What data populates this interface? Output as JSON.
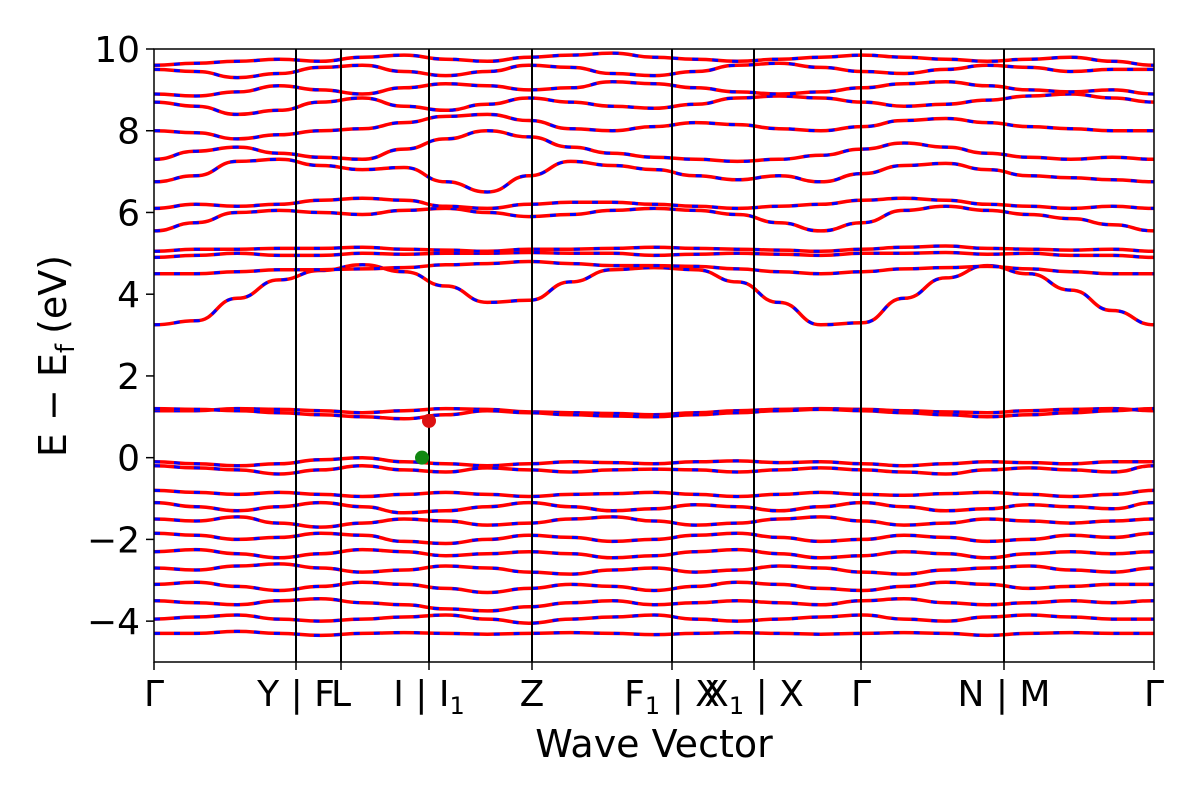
{
  "chart_data": {
    "type": "line",
    "title": "",
    "xlabel": "Wave Vector",
    "ylabel": "E − E",
    "ylabel_subscript": "f",
    "ylabel_unit": "(eV)",
    "ylim": [
      -5,
      10
    ],
    "yticks": [
      -4,
      -2,
      0,
      2,
      4,
      6,
      8,
      10
    ],
    "ytick_labels": [
      "−4",
      "−2",
      "0",
      "2",
      "4",
      "6",
      "8",
      "10"
    ],
    "xlim": [
      0,
      1
    ],
    "high_symmetry_points": [
      {
        "position": 0.0,
        "label": "Γ"
      },
      {
        "position": 0.142,
        "label": "Y | F"
      },
      {
        "position": 0.187,
        "label": "L"
      },
      {
        "position": 0.275,
        "label": "I | I",
        "sub": "1"
      },
      {
        "position": 0.378,
        "label": "Z"
      },
      {
        "position": 0.518,
        "label": "F",
        "sub": "1",
        "suffix": " | X"
      },
      {
        "position": 0.6,
        "label": "X",
        "sub": "1",
        "suffix": " | X"
      },
      {
        "position": 0.707,
        "label": "Γ"
      },
      {
        "position": 0.85,
        "label": "N | M"
      },
      {
        "position": 1.0,
        "label": "Γ"
      }
    ],
    "series": [
      {
        "color": "#ff0000",
        "style": "solid"
      },
      {
        "color": "#0000ff",
        "style": "dashed"
      }
    ],
    "markers": [
      {
        "label": "CBM",
        "x": 0.275,
        "y": 0.9,
        "color": "#dd1111"
      },
      {
        "label": "VBM",
        "x": 0.268,
        "y": 0.0,
        "color": "#118811"
      }
    ],
    "bands": [
      [
        3.25,
        3.35,
        3.9,
        4.35,
        4.58,
        4.72,
        4.55,
        4.2,
        3.8,
        3.85,
        4.3,
        4.6,
        4.65,
        4.6,
        4.3,
        3.8,
        3.25,
        3.3,
        3.9,
        4.4,
        4.7,
        4.5,
        4.1,
        3.6,
        3.25
      ],
      [
        4.5,
        4.5,
        4.55,
        4.6,
        4.6,
        4.62,
        4.65,
        4.72,
        4.75,
        4.8,
        4.75,
        4.7,
        4.7,
        4.68,
        4.62,
        4.55,
        4.5,
        4.55,
        4.62,
        4.65,
        4.68,
        4.62,
        4.55,
        4.5,
        4.5
      ],
      [
        4.9,
        4.95,
        5.0,
        4.95,
        4.95,
        5.0,
        4.98,
        5.0,
        5.0,
        5.02,
        5.0,
        5.0,
        4.95,
        4.98,
        5.0,
        4.98,
        4.95,
        5.0,
        5.0,
        5.02,
        4.98,
        5.0,
        4.95,
        4.95,
        4.9
      ],
      [
        5.05,
        5.1,
        5.1,
        5.12,
        5.12,
        5.15,
        5.1,
        5.08,
        5.05,
        5.1,
        5.1,
        5.12,
        5.15,
        5.12,
        5.1,
        5.08,
        5.05,
        5.1,
        5.15,
        5.18,
        5.12,
        5.1,
        5.08,
        5.1,
        5.05
      ],
      [
        5.55,
        5.75,
        6.0,
        6.05,
        6.0,
        5.95,
        6.05,
        6.1,
        6.0,
        5.9,
        5.95,
        6.05,
        6.1,
        6.05,
        5.95,
        5.75,
        5.55,
        5.75,
        6.05,
        6.15,
        6.05,
        5.95,
        5.85,
        5.7,
        5.55
      ],
      [
        6.1,
        6.2,
        6.15,
        6.2,
        6.3,
        6.35,
        6.3,
        6.15,
        6.1,
        6.2,
        6.25,
        6.25,
        6.2,
        6.15,
        6.1,
        6.15,
        6.2,
        6.3,
        6.35,
        6.3,
        6.2,
        6.15,
        6.1,
        6.15,
        6.1
      ],
      [
        6.75,
        6.9,
        7.25,
        7.3,
        7.15,
        7.05,
        7.1,
        6.75,
        6.5,
        6.9,
        7.25,
        7.15,
        7.05,
        6.9,
        6.8,
        6.9,
        6.75,
        6.95,
        7.15,
        7.2,
        7.05,
        6.9,
        6.85,
        6.8,
        6.75
      ],
      [
        7.3,
        7.5,
        7.6,
        7.45,
        7.35,
        7.3,
        7.55,
        7.8,
        8.0,
        7.85,
        7.6,
        7.45,
        7.35,
        7.3,
        7.25,
        7.3,
        7.4,
        7.55,
        7.7,
        7.6,
        7.45,
        7.35,
        7.3,
        7.35,
        7.3
      ],
      [
        8.0,
        7.95,
        7.8,
        7.9,
        8.0,
        8.05,
        8.2,
        8.35,
        8.4,
        8.25,
        8.05,
        8.0,
        8.1,
        8.2,
        8.15,
        8.05,
        8.0,
        8.1,
        8.25,
        8.3,
        8.2,
        8.1,
        8.05,
        8.0,
        8.0
      ],
      [
        8.7,
        8.6,
        8.4,
        8.5,
        8.7,
        8.8,
        8.6,
        8.5,
        8.65,
        8.8,
        8.7,
        8.6,
        8.55,
        8.65,
        8.8,
        8.85,
        8.8,
        8.7,
        8.6,
        8.65,
        8.75,
        8.85,
        8.9,
        8.8,
        8.7
      ],
      [
        8.9,
        8.85,
        8.95,
        9.1,
        9.0,
        8.9,
        9.05,
        9.15,
        9.1,
        9.0,
        9.05,
        9.2,
        9.15,
        9.05,
        8.95,
        8.9,
        8.95,
        9.05,
        9.15,
        9.2,
        9.1,
        9.0,
        8.95,
        9.0,
        8.9
      ],
      [
        9.5,
        9.45,
        9.3,
        9.4,
        9.55,
        9.6,
        9.45,
        9.35,
        9.45,
        9.6,
        9.55,
        9.4,
        9.35,
        9.45,
        9.6,
        9.65,
        9.55,
        9.45,
        9.4,
        9.5,
        9.6,
        9.55,
        9.45,
        9.5,
        9.5
      ],
      [
        9.6,
        9.65,
        9.7,
        9.75,
        9.7,
        9.8,
        9.85,
        9.75,
        9.7,
        9.8,
        9.85,
        9.9,
        9.8,
        9.75,
        9.7,
        9.75,
        9.8,
        9.85,
        9.8,
        9.75,
        9.7,
        9.75,
        9.8,
        9.7,
        9.6
      ],
      [
        1.15,
        1.15,
        1.2,
        1.18,
        1.15,
        1.1,
        1.15,
        1.2,
        1.18,
        1.12,
        1.1,
        1.08,
        1.05,
        1.1,
        1.15,
        1.18,
        1.2,
        1.18,
        1.15,
        1.12,
        1.1,
        1.15,
        1.18,
        1.2,
        1.15
      ],
      [
        1.2,
        1.18,
        1.15,
        1.1,
        1.05,
        1.0,
        0.95,
        1.05,
        1.15,
        1.1,
        1.05,
        1.02,
        1.0,
        1.05,
        1.1,
        1.15,
        1.18,
        1.15,
        1.1,
        1.05,
        1.0,
        1.05,
        1.1,
        1.15,
        1.2
      ],
      [
        -0.1,
        -0.15,
        -0.2,
        -0.15,
        -0.05,
        0.0,
        -0.1,
        -0.15,
        -0.2,
        -0.15,
        -0.1,
        -0.12,
        -0.15,
        -0.1,
        -0.08,
        -0.12,
        -0.1,
        -0.15,
        -0.2,
        -0.15,
        -0.1,
        -0.12,
        -0.15,
        -0.1,
        -0.1
      ],
      [
        -0.2,
        -0.25,
        -0.3,
        -0.4,
        -0.3,
        -0.2,
        -0.3,
        -0.35,
        -0.25,
        -0.3,
        -0.35,
        -0.3,
        -0.28,
        -0.3,
        -0.35,
        -0.3,
        -0.25,
        -0.3,
        -0.35,
        -0.4,
        -0.3,
        -0.25,
        -0.3,
        -0.35,
        -0.2
      ],
      [
        -0.8,
        -0.85,
        -0.9,
        -0.85,
        -0.9,
        -0.95,
        -0.9,
        -0.85,
        -0.9,
        -0.95,
        -0.9,
        -0.88,
        -0.85,
        -0.9,
        -0.95,
        -0.9,
        -0.85,
        -0.9,
        -0.92,
        -0.88,
        -0.85,
        -0.9,
        -0.95,
        -0.9,
        -0.8
      ],
      [
        -1.1,
        -1.2,
        -1.3,
        -1.2,
        -1.1,
        -1.2,
        -1.35,
        -1.3,
        -1.2,
        -1.1,
        -1.2,
        -1.3,
        -1.25,
        -1.15,
        -1.2,
        -1.3,
        -1.2,
        -1.1,
        -1.2,
        -1.3,
        -1.25,
        -1.15,
        -1.2,
        -1.25,
        -1.1
      ],
      [
        -1.5,
        -1.55,
        -1.45,
        -1.6,
        -1.7,
        -1.6,
        -1.5,
        -1.55,
        -1.65,
        -1.6,
        -1.5,
        -1.45,
        -1.55,
        -1.65,
        -1.6,
        -1.5,
        -1.45,
        -1.55,
        -1.65,
        -1.6,
        -1.5,
        -1.55,
        -1.6,
        -1.55,
        -1.5
      ],
      [
        -1.85,
        -1.9,
        -2.0,
        -1.95,
        -1.85,
        -1.9,
        -2.05,
        -2.1,
        -2.0,
        -1.9,
        -1.95,
        -2.05,
        -2.0,
        -1.9,
        -1.85,
        -1.95,
        -2.05,
        -2.0,
        -1.9,
        -1.95,
        -2.05,
        -2.0,
        -1.9,
        -1.95,
        -1.85
      ],
      [
        -2.3,
        -2.25,
        -2.35,
        -2.45,
        -2.35,
        -2.25,
        -2.3,
        -2.4,
        -2.35,
        -2.3,
        -2.35,
        -2.45,
        -2.4,
        -2.3,
        -2.25,
        -2.35,
        -2.45,
        -2.4,
        -2.3,
        -2.35,
        -2.45,
        -2.35,
        -2.3,
        -2.35,
        -2.3
      ],
      [
        -2.7,
        -2.75,
        -2.65,
        -2.6,
        -2.7,
        -2.8,
        -2.75,
        -2.65,
        -2.7,
        -2.8,
        -2.85,
        -2.75,
        -2.7,
        -2.8,
        -2.75,
        -2.65,
        -2.7,
        -2.8,
        -2.85,
        -2.75,
        -2.7,
        -2.65,
        -2.75,
        -2.8,
        -2.7
      ],
      [
        -3.1,
        -3.05,
        -3.15,
        -3.25,
        -3.15,
        -3.05,
        -3.1,
        -3.2,
        -3.3,
        -3.2,
        -3.1,
        -3.15,
        -3.25,
        -3.15,
        -3.05,
        -3.1,
        -3.2,
        -3.25,
        -3.15,
        -3.05,
        -3.1,
        -3.2,
        -3.15,
        -3.1,
        -3.1
      ],
      [
        -3.5,
        -3.55,
        -3.6,
        -3.5,
        -3.45,
        -3.55,
        -3.6,
        -3.7,
        -3.75,
        -3.65,
        -3.55,
        -3.5,
        -3.6,
        -3.55,
        -3.5,
        -3.55,
        -3.6,
        -3.5,
        -3.45,
        -3.55,
        -3.6,
        -3.55,
        -3.5,
        -3.55,
        -3.5
      ],
      [
        -3.95,
        -3.9,
        -3.85,
        -3.95,
        -4.0,
        -3.95,
        -3.9,
        -3.85,
        -3.95,
        -4.05,
        -3.95,
        -3.9,
        -3.85,
        -3.95,
        -4.0,
        -3.95,
        -3.9,
        -3.85,
        -3.95,
        -4.0,
        -3.9,
        -3.85,
        -3.9,
        -3.95,
        -3.95
      ],
      [
        -4.3,
        -4.3,
        -4.25,
        -4.3,
        -4.35,
        -4.3,
        -4.28,
        -4.3,
        -4.32,
        -4.3,
        -4.28,
        -4.3,
        -4.33,
        -4.3,
        -4.28,
        -4.3,
        -4.32,
        -4.3,
        -4.28,
        -4.3,
        -4.35,
        -4.3,
        -4.28,
        -4.3,
        -4.3
      ]
    ]
  }
}
